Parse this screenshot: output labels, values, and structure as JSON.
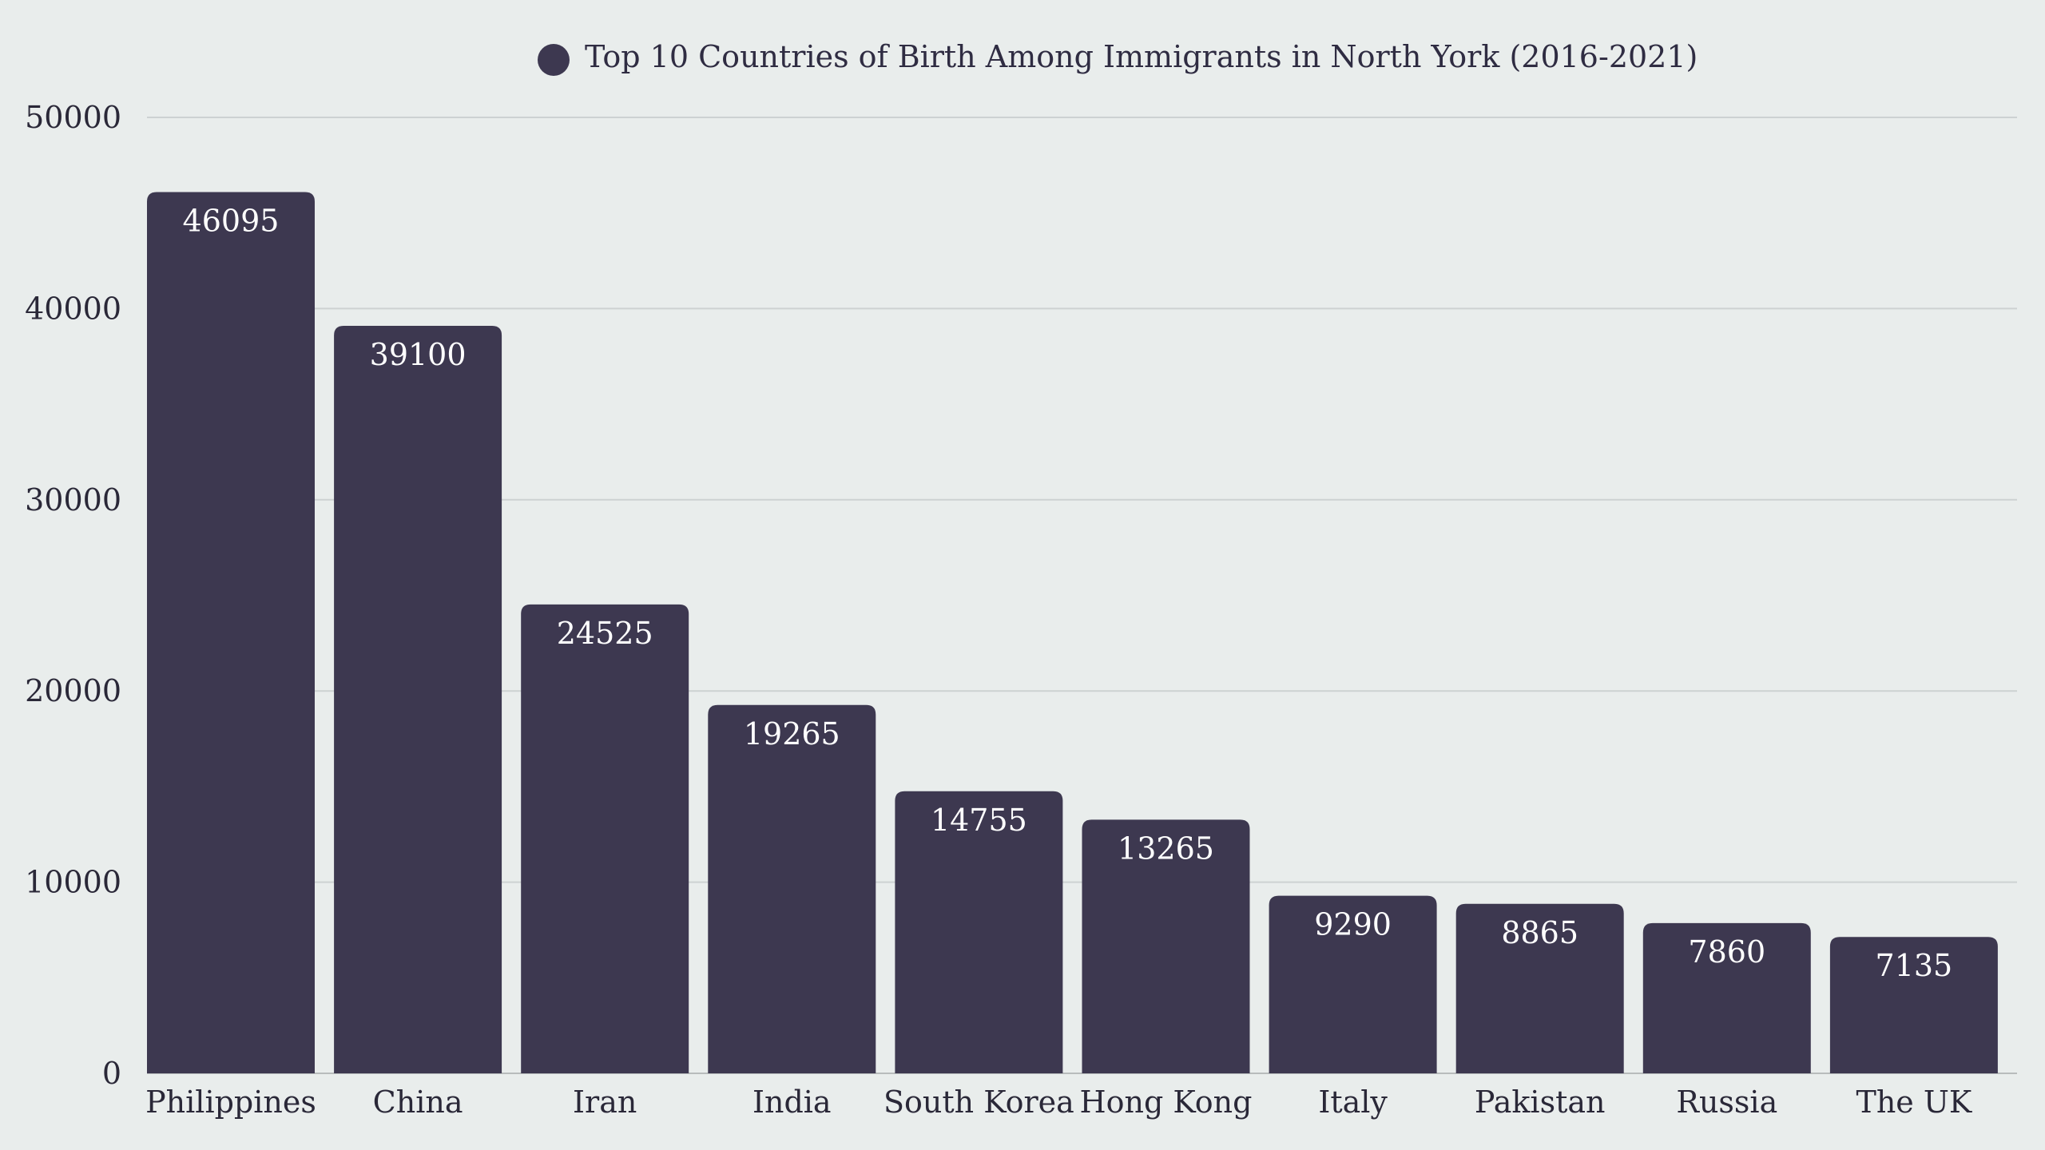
{
  "chart_data": {
    "type": "bar",
    "title": "",
    "series": [
      {
        "name": "Top 10 Countries of Birth Among Immigrants in North York (2016-2021)",
        "values": [
          46095,
          39100,
          24525,
          19265,
          14755,
          13265,
          9290,
          8865,
          7860,
          7135
        ]
      }
    ],
    "categories": [
      "Philippines",
      "China",
      "Iran",
      "India",
      "South Korea",
      "Hong Kong",
      "Italy",
      "Pakistan",
      "Russia",
      "The UK"
    ],
    "xlabel": "",
    "ylabel": "",
    "ylim": [
      0,
      50000
    ],
    "yticks": [
      "0",
      "10000",
      "20000",
      "30000",
      "40000",
      "50000"
    ],
    "grid": true,
    "legend_position": "top-center",
    "colors": {
      "bar": "#3d3850",
      "background": "#e9edec",
      "grid": "#cdd2d2",
      "legend_marker": "#3d3850"
    }
  }
}
